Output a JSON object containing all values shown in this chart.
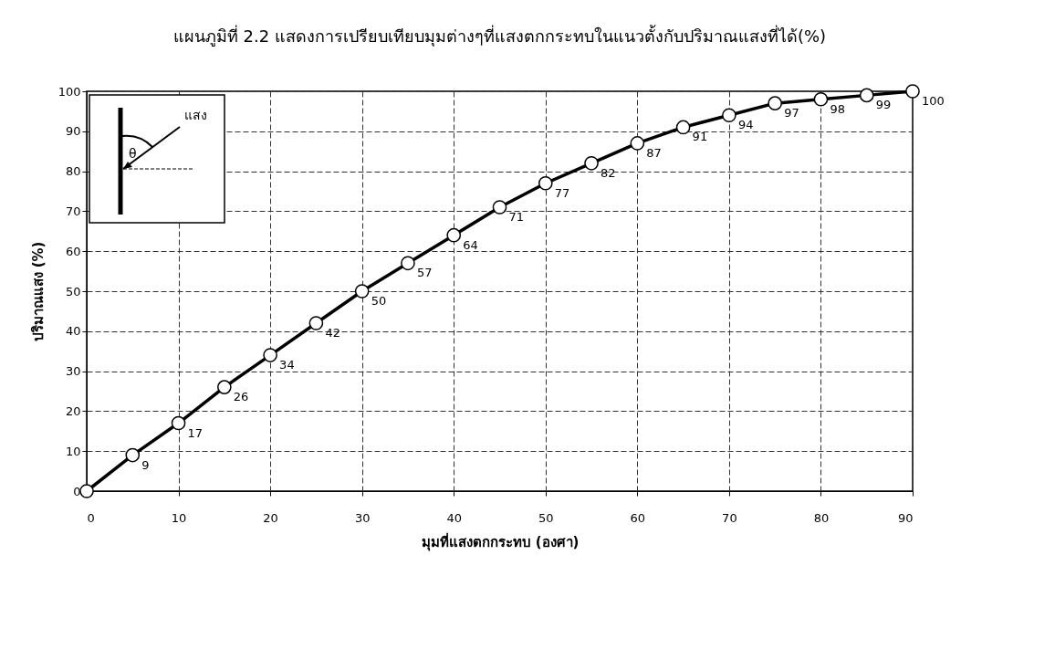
{
  "chart_data": {
    "type": "line",
    "title": "แผนภูมิที่ 2.2   แสดงการเปรียบเทียบมุมต่างๆที่แสงตกกระทบในแนวตั้งกับปริมาณแสงที่ได้(%)",
    "xlabel": "มุมที่แสงตกกระทบ (องศา)",
    "ylabel": "ปริมาณแสง (%)",
    "x": [
      0,
      5,
      10,
      15,
      20,
      25,
      30,
      35,
      40,
      45,
      50,
      55,
      60,
      65,
      70,
      75,
      80,
      85,
      90
    ],
    "series": [
      {
        "color": "#000000",
        "values": [
          0,
          9,
          17,
          26,
          34,
          42,
          50,
          57,
          64,
          71,
          77,
          82,
          87,
          91,
          94,
          97,
          98,
          99,
          100
        ],
        "value_labels": [
          null,
          "9",
          "17",
          "26",
          "34",
          "42",
          "50",
          "57",
          "64",
          "71",
          "77",
          "82",
          "87",
          "91",
          "94",
          "97",
          "98",
          "99",
          "100"
        ]
      }
    ],
    "xlim": [
      0,
      90
    ],
    "xticks": [
      0,
      10,
      20,
      30,
      40,
      50,
      60,
      70,
      80,
      90
    ],
    "ylim": [
      0,
      100
    ],
    "yticks": [
      0,
      10,
      20,
      30,
      40,
      50,
      60,
      70,
      80,
      90,
      100
    ],
    "grid": true,
    "marker": "circle",
    "line_style": "solid",
    "annotations": [
      "แสง",
      "θ"
    ]
  }
}
